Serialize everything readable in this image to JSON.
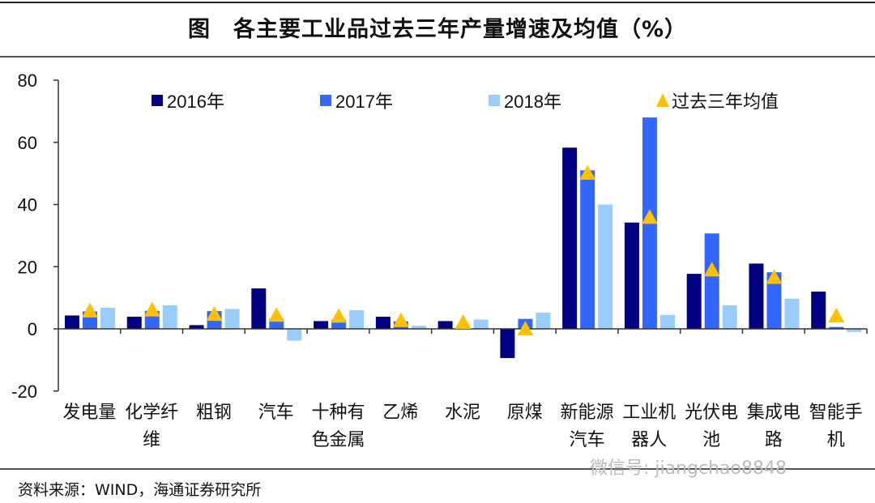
{
  "chart_data": {
    "type": "bar",
    "title": "图　各主要工业品过去三年产量增速及均值（%）",
    "categories": [
      "发电量",
      "化学纤维",
      "粗钢",
      "汽车",
      "十种有色金属",
      "乙烯",
      "水泥",
      "原煤",
      "新能源汽车",
      "工业机器人",
      "光伏电池",
      "集成电路",
      "智能手机"
    ],
    "series": [
      {
        "name": "2016年",
        "color": "#000080",
        "values": [
          4.3,
          3.9,
          1.2,
          13.0,
          2.5,
          3.9,
          2.5,
          -9.4,
          58.3,
          34.2,
          17.7,
          21.0,
          12.0
        ]
      },
      {
        "name": "2017年",
        "color": "#3366ff",
        "values": [
          5.6,
          5.8,
          5.7,
          3.2,
          2.9,
          2.4,
          -0.2,
          3.2,
          51.0,
          68.0,
          30.7,
          18.2,
          0.6
        ]
      },
      {
        "name": "2018年",
        "color": "#99ccff",
        "values": [
          6.8,
          7.6,
          6.4,
          -3.8,
          6.0,
          1.0,
          3.0,
          5.2,
          40.0,
          4.5,
          7.6,
          9.7,
          -1.0
        ]
      }
    ],
    "markers": {
      "name": "过去三年均值",
      "color": "#ffc000",
      "shape": "triangle",
      "values": [
        5.5,
        5.8,
        4.4,
        4.1,
        3.8,
        2.4,
        1.8,
        -0.3,
        49.8,
        35.6,
        18.7,
        16.3,
        3.9
      ]
    },
    "yticks": [
      -20,
      0,
      20,
      40,
      60,
      80
    ],
    "ylim": [
      -20,
      80
    ],
    "grid": false,
    "legend_position": "top"
  },
  "source": "资料来源：WIND，海通证券研究所",
  "watermark": "微信号: jiangchao8848"
}
